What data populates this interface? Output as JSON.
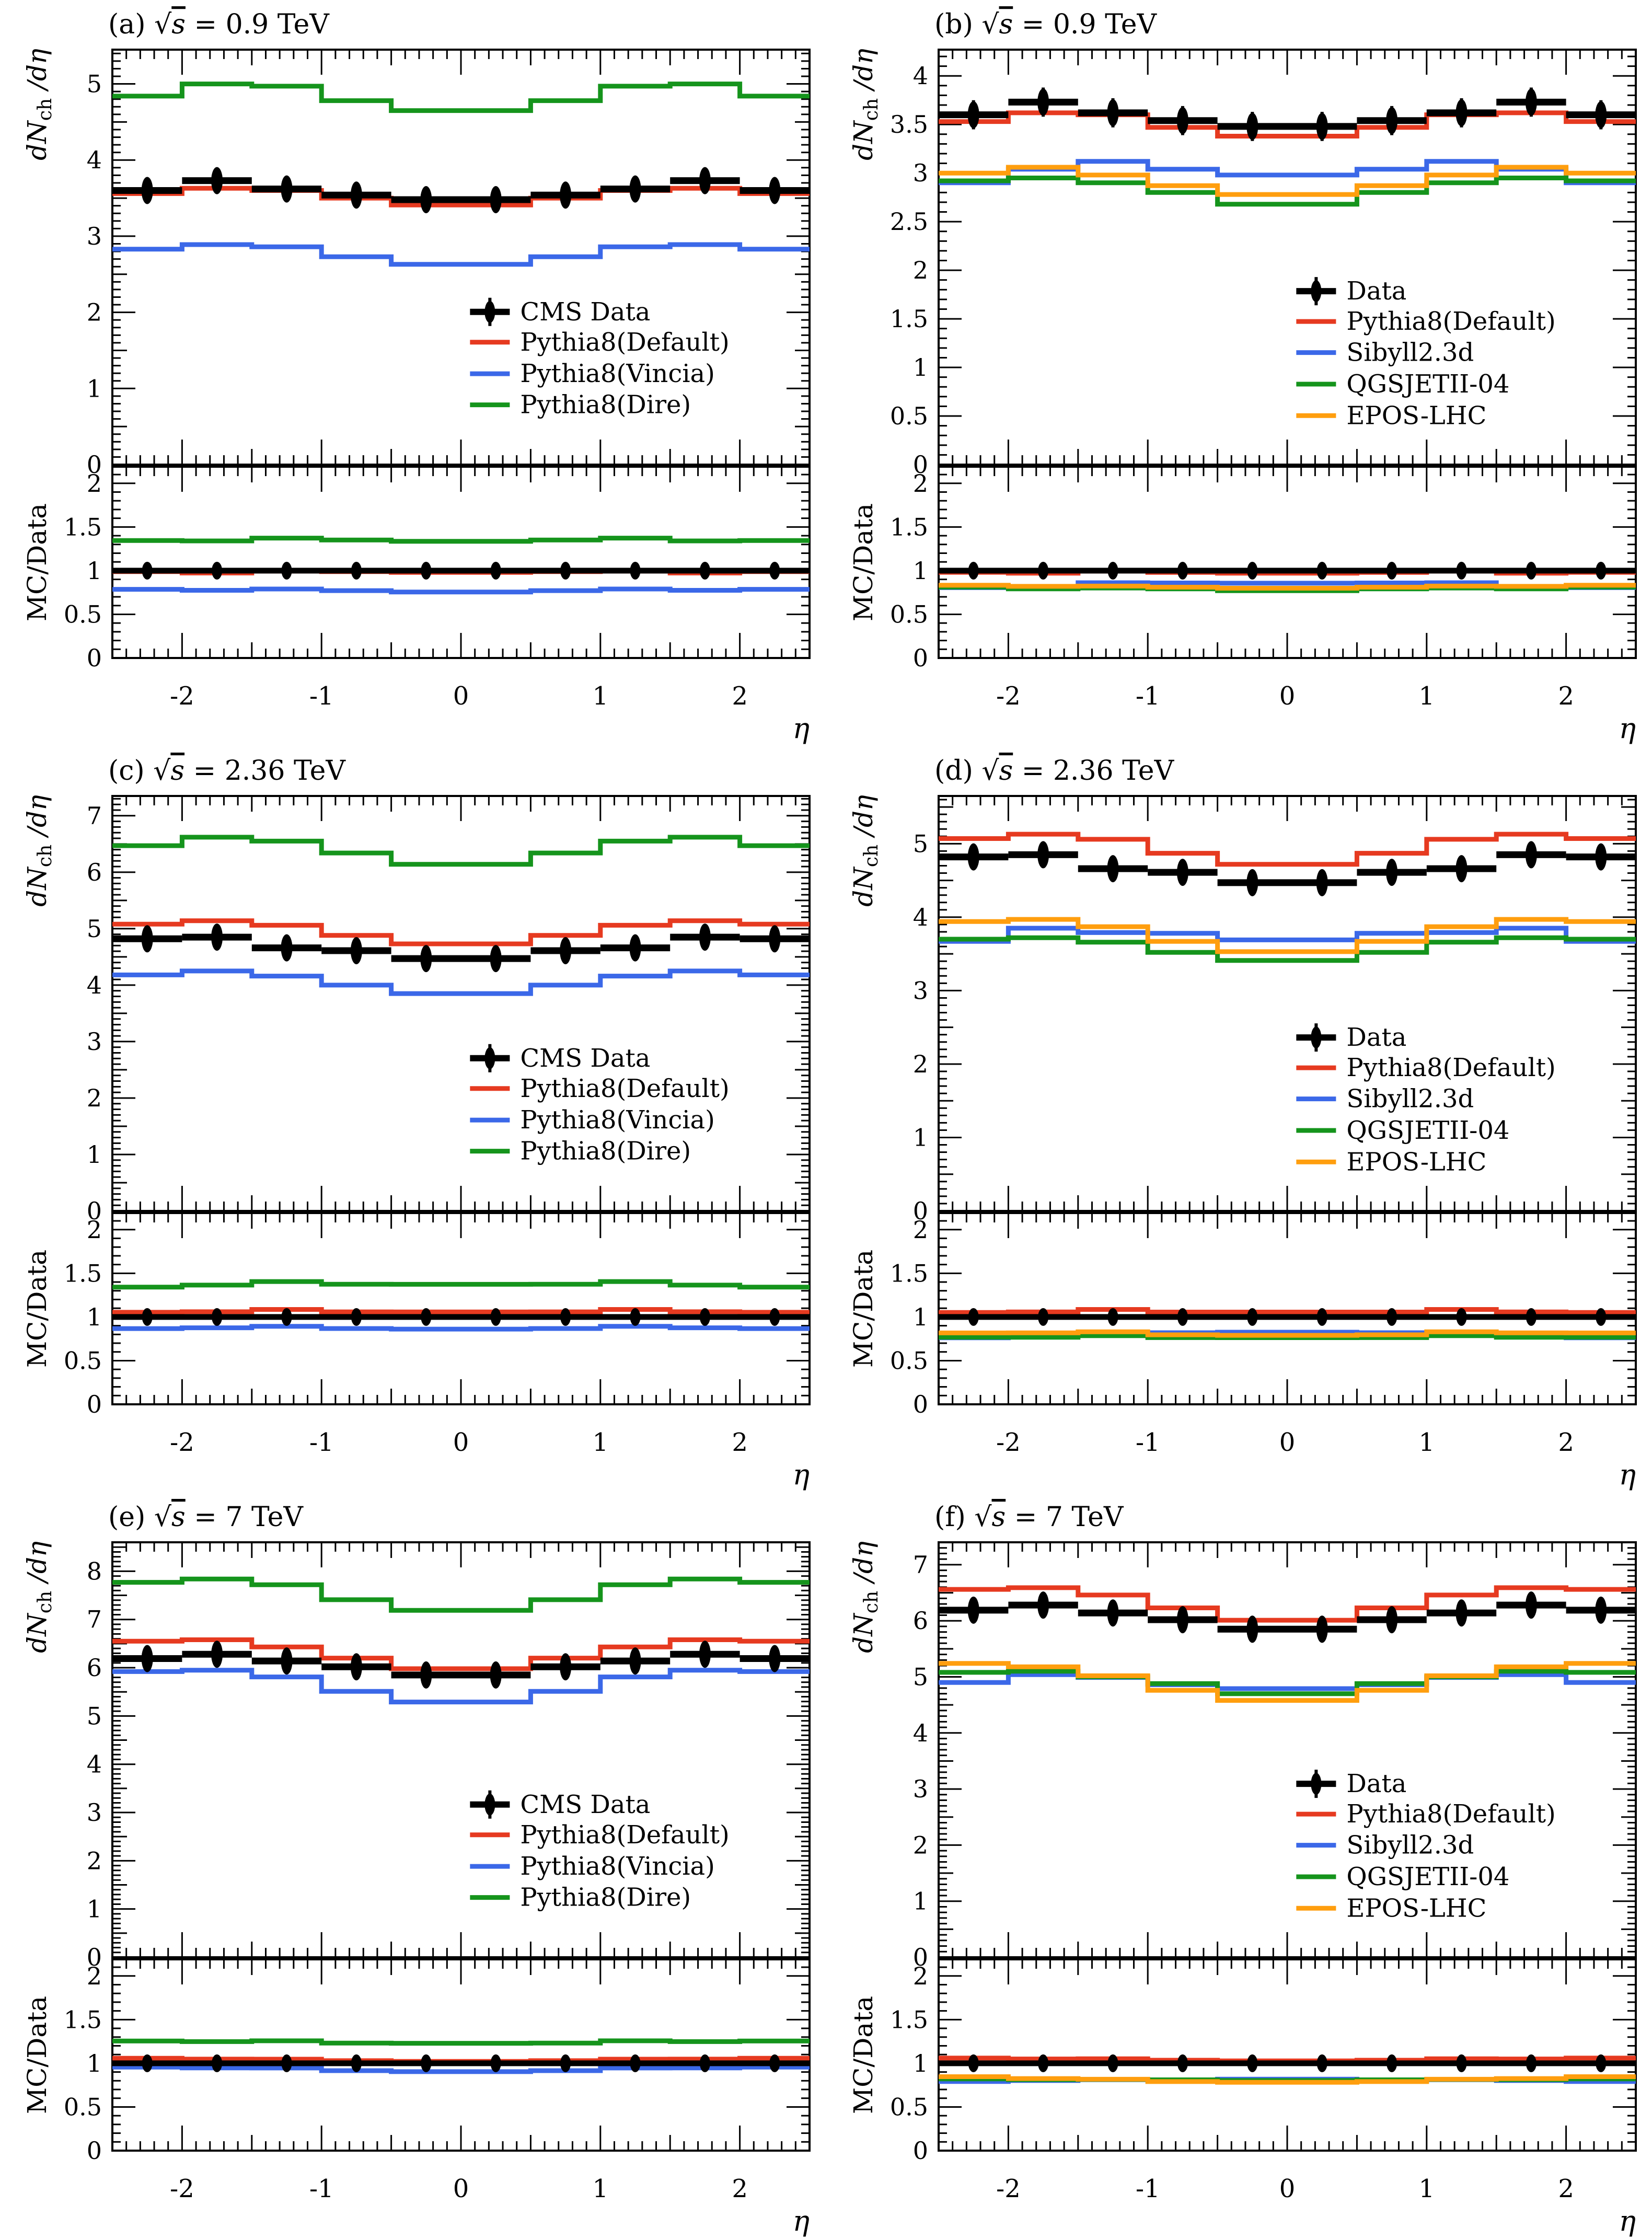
{
  "colors": {
    "black": "#000000",
    "red": "#e63a20",
    "blue": "#3b68e8",
    "green": "#15941c",
    "orange": "#ff9e0e"
  },
  "layout_text": {
    "eta_axis_label": "η",
    "ratio_axis_label": "MC/Data",
    "y_axis_label_d": "dN",
    "y_axis_label_sub": "ch",
    "y_axis_label_rest": " /dη",
    "sqrt_symbol": "√",
    "s_symbol": "s",
    "equals": " = "
  },
  "x": {
    "min": -2.5,
    "max": 2.5,
    "bin_edges": [
      -2.5,
      -2.0,
      -1.5,
      -1.0,
      -0.5,
      0.0,
      0.5,
      1.0,
      1.5,
      2.0,
      2.5
    ],
    "tick_labels": [
      "-2",
      "-1",
      "0",
      "1",
      "2"
    ],
    "tick_values": [
      -2,
      -1,
      0,
      1,
      2
    ]
  },
  "ratio": {
    "ylim": [
      0,
      2.19
    ],
    "tick_step": 0.5,
    "data_marker_err": 0.035
  },
  "chart_data": [
    {
      "id": "a",
      "type": "step-histogram",
      "title_prefix": "(a)",
      "energy": "0.9 TeV",
      "ylim": [
        0,
        5.45
      ],
      "ytick_label_step": 1,
      "data": {
        "label": "CMS Data",
        "values": [
          3.6,
          3.73,
          3.62,
          3.54,
          3.48,
          3.48,
          3.54,
          3.62,
          3.73,
          3.6
        ],
        "yerr": 0.15
      },
      "series": [
        {
          "key": "pythia8-default",
          "label": "Pythia8(Default)",
          "color": "red",
          "values": [
            3.56,
            3.63,
            3.6,
            3.5,
            3.41,
            3.41,
            3.5,
            3.6,
            3.63,
            3.56
          ]
        },
        {
          "key": "pythia8-vincia",
          "label": "Pythia8(Vincia)",
          "color": "blue",
          "values": [
            2.83,
            2.89,
            2.86,
            2.73,
            2.63,
            2.63,
            2.73,
            2.86,
            2.89,
            2.83
          ]
        },
        {
          "key": "pythia8-dire",
          "label": "Pythia8(Dire)",
          "color": "green",
          "values": [
            4.84,
            5.0,
            4.97,
            4.78,
            4.65,
            4.65,
            4.78,
            4.97,
            5.0,
            4.84
          ]
        }
      ]
    },
    {
      "id": "b",
      "type": "step-histogram",
      "title_prefix": "(b)",
      "energy": "0.9 TeV",
      "ylim": [
        0,
        4.27
      ],
      "ytick_label_step": 0.5,
      "data": {
        "label": "Data",
        "values": [
          3.6,
          3.73,
          3.62,
          3.54,
          3.48,
          3.48,
          3.54,
          3.62,
          3.73,
          3.6
        ],
        "yerr": 0.15
      },
      "series": [
        {
          "key": "pythia8-default",
          "label": "Pythia8(Default)",
          "color": "red",
          "values": [
            3.53,
            3.62,
            3.6,
            3.47,
            3.38,
            3.38,
            3.47,
            3.6,
            3.62,
            3.53
          ]
        },
        {
          "key": "sibyll",
          "label": "Sibyll2.3d",
          "color": "blue",
          "values": [
            2.9,
            3.04,
            3.12,
            3.04,
            2.98,
            2.98,
            3.04,
            3.12,
            3.04,
            2.9
          ]
        },
        {
          "key": "qgsjet",
          "label": "QGSJETII-04",
          "color": "green",
          "values": [
            2.92,
            2.95,
            2.9,
            2.8,
            2.68,
            2.68,
            2.8,
            2.9,
            2.95,
            2.92
          ]
        },
        {
          "key": "epos",
          "label": "EPOS-LHC",
          "color": "orange",
          "values": [
            3.0,
            3.06,
            2.98,
            2.87,
            2.78,
            2.78,
            2.87,
            2.98,
            3.06,
            3.0
          ]
        }
      ]
    },
    {
      "id": "c",
      "type": "step-histogram",
      "title_prefix": "(c)",
      "energy": "2.36 TeV",
      "ylim": [
        0,
        7.35
      ],
      "ytick_label_step": 1,
      "data": {
        "label": "CMS Data",
        "values": [
          4.82,
          4.85,
          4.66,
          4.61,
          4.47,
          4.47,
          4.61,
          4.66,
          4.85,
          4.82
        ],
        "yerr": 0.16
      },
      "series": [
        {
          "key": "pythia8-default",
          "label": "Pythia8(Default)",
          "color": "red",
          "values": [
            5.08,
            5.14,
            5.06,
            4.88,
            4.73,
            4.73,
            4.88,
            5.06,
            5.14,
            5.08
          ]
        },
        {
          "key": "pythia8-vincia",
          "label": "Pythia8(Vincia)",
          "color": "blue",
          "values": [
            4.18,
            4.25,
            4.16,
            4.0,
            3.85,
            3.85,
            4.0,
            4.16,
            4.25,
            4.18
          ]
        },
        {
          "key": "pythia8-dire",
          "label": "Pythia8(Dire)",
          "color": "green",
          "values": [
            6.47,
            6.62,
            6.55,
            6.34,
            6.14,
            6.14,
            6.34,
            6.55,
            6.62,
            6.47
          ]
        }
      ]
    },
    {
      "id": "d",
      "type": "step-histogram",
      "title_prefix": "(d)",
      "energy": "2.36 TeV",
      "ylim": [
        0,
        5.65
      ],
      "ytick_label_step": 1,
      "data": {
        "label": "Data",
        "values": [
          4.82,
          4.85,
          4.66,
          4.61,
          4.47,
          4.47,
          4.61,
          4.66,
          4.85,
          4.82
        ],
        "yerr": 0.16
      },
      "series": [
        {
          "key": "pythia8-default",
          "label": "Pythia8(Default)",
          "color": "red",
          "values": [
            5.07,
            5.13,
            5.06,
            4.87,
            4.72,
            4.72,
            4.87,
            5.06,
            5.13,
            5.07
          ]
        },
        {
          "key": "sibyll",
          "label": "Sibyll2.3d",
          "color": "blue",
          "values": [
            3.67,
            3.85,
            3.79,
            3.78,
            3.69,
            3.69,
            3.78,
            3.79,
            3.85,
            3.67
          ]
        },
        {
          "key": "qgsjet",
          "label": "QGSJETII-04",
          "color": "green",
          "values": [
            3.7,
            3.72,
            3.66,
            3.52,
            3.41,
            3.41,
            3.52,
            3.66,
            3.72,
            3.7
          ]
        },
        {
          "key": "epos",
          "label": "EPOS-LHC",
          "color": "orange",
          "values": [
            3.94,
            3.97,
            3.87,
            3.67,
            3.53,
            3.53,
            3.67,
            3.87,
            3.97,
            3.94
          ]
        }
      ]
    },
    {
      "id": "e",
      "type": "step-histogram",
      "title_prefix": "(e)",
      "energy": "7 TeV",
      "ylim": [
        0,
        8.6
      ],
      "ytick_label_step": 1,
      "data": {
        "label": "CMS Data",
        "values": [
          6.19,
          6.28,
          6.14,
          6.02,
          5.85,
          5.85,
          6.02,
          6.14,
          6.28,
          6.19
        ],
        "yerr": 0.2
      },
      "series": [
        {
          "key": "pythia8-default",
          "label": "Pythia8(Default)",
          "color": "red",
          "values": [
            6.55,
            6.58,
            6.43,
            6.2,
            5.98,
            5.98,
            6.2,
            6.43,
            6.58,
            6.55
          ]
        },
        {
          "key": "pythia8-vincia",
          "label": "Pythia8(Vincia)",
          "color": "blue",
          "values": [
            5.92,
            5.95,
            5.81,
            5.51,
            5.29,
            5.29,
            5.51,
            5.81,
            5.95,
            5.92
          ]
        },
        {
          "key": "pythia8-dire",
          "label": "Pythia8(Dire)",
          "color": "green",
          "values": [
            7.77,
            7.84,
            7.72,
            7.41,
            7.19,
            7.19,
            7.41,
            7.72,
            7.84,
            7.77
          ]
        }
      ]
    },
    {
      "id": "f",
      "type": "step-histogram",
      "title_prefix": "(f)",
      "energy": "7 TeV",
      "ylim": [
        0,
        7.4
      ],
      "ytick_label_step": 1,
      "data": {
        "label": "Data",
        "values": [
          6.19,
          6.28,
          6.14,
          6.02,
          5.85,
          5.85,
          6.02,
          6.14,
          6.28,
          6.19
        ],
        "yerr": 0.2
      },
      "series": [
        {
          "key": "pythia8-default",
          "label": "Pythia8(Default)",
          "color": "red",
          "values": [
            6.56,
            6.59,
            6.46,
            6.23,
            6.01,
            6.01,
            6.23,
            6.46,
            6.59,
            6.56
          ]
        },
        {
          "key": "sibyll",
          "label": "Sibyll2.3d",
          "color": "blue",
          "values": [
            4.9,
            5.04,
            4.99,
            4.86,
            4.79,
            4.79,
            4.86,
            4.99,
            5.04,
            4.9
          ]
        },
        {
          "key": "qgsjet",
          "label": "QGSJETII-04",
          "color": "green",
          "values": [
            5.08,
            5.1,
            5.0,
            4.88,
            4.7,
            4.7,
            4.88,
            5.0,
            5.1,
            5.08
          ]
        },
        {
          "key": "epos",
          "label": "EPOS-LHC",
          "color": "orange",
          "values": [
            5.24,
            5.18,
            5.02,
            4.76,
            4.58,
            4.58,
            4.76,
            5.02,
            5.18,
            5.24
          ]
        }
      ]
    }
  ]
}
